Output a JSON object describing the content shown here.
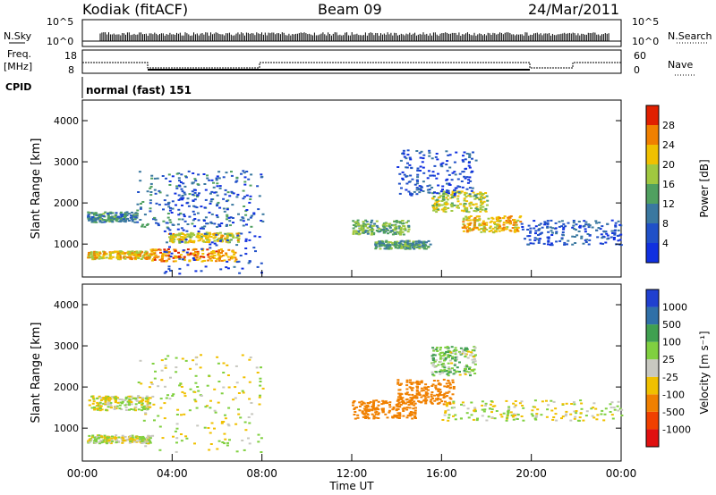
{
  "header": {
    "station": "Kodiak (fitACF)",
    "beam": "Beam 09",
    "date": "24/Mar/2011"
  },
  "sky_panel": {
    "left_label": "N.Sky",
    "right_label": "N.Search",
    "left_ticks": [
      "10^5",
      "10^0"
    ],
    "right_ticks": [
      "10^5",
      "10^0"
    ]
  },
  "freq_panel": {
    "left_label": "Freq.",
    "left_unit": "[MHz]",
    "right_label": "Nave",
    "left_ticks": [
      "18",
      "8"
    ],
    "right_ticks": [
      "60",
      "0"
    ]
  },
  "cpid": {
    "label": "CPID",
    "value": "normal (fast) 151"
  },
  "chart_data": [
    {
      "type": "heatmap",
      "name": "Power",
      "ylabel": "Slant Range [km]",
      "ylim": [
        200,
        4500
      ],
      "yticks": [
        "1000",
        "2000",
        "3000",
        "4000"
      ],
      "colorbar": {
        "label": "Power [dB]",
        "ticks": [
          "4",
          "8",
          "12",
          "16",
          "20",
          "24",
          "28"
        ],
        "colors": [
          "#1030e0",
          "#2050c8",
          "#3a78a0",
          "#50a060",
          "#a0c840",
          "#f0c000",
          "#f08000",
          "#e02000"
        ]
      },
      "blobs": [
        {
          "t": [
            0.2,
            2.4
          ],
          "r": [
            1550,
            1800
          ],
          "v": 14
        },
        {
          "t": [
            0.2,
            3.0
          ],
          "r": [
            650,
            850
          ],
          "v": 24
        },
        {
          "t": [
            2.4,
            7.5
          ],
          "r": [
            1400,
            2800
          ],
          "v": 12
        },
        {
          "t": [
            3.0,
            6.8
          ],
          "r": [
            600,
            900
          ],
          "v": 27
        },
        {
          "t": [
            3.8,
            7.0
          ],
          "r": [
            1050,
            1300
          ],
          "v": 22
        },
        {
          "t": [
            3.5,
            8.0
          ],
          "r": [
            300,
            2800
          ],
          "v": 6
        },
        {
          "t": [
            12.0,
            14.5
          ],
          "r": [
            1250,
            1600
          ],
          "v": 17
        },
        {
          "t": [
            13.0,
            15.5
          ],
          "r": [
            900,
            1100
          ],
          "v": 15
        },
        {
          "t": [
            15.5,
            18.0
          ],
          "r": [
            1800,
            2300
          ],
          "v": 21
        },
        {
          "t": [
            16.8,
            19.5
          ],
          "r": [
            1300,
            1700
          ],
          "v": 25
        },
        {
          "t": [
            14.0,
            17.5
          ],
          "r": [
            2200,
            3300
          ],
          "v": 7
        },
        {
          "t": [
            19.5,
            24.0
          ],
          "r": [
            1000,
            1600
          ],
          "v": 8
        }
      ]
    },
    {
      "type": "heatmap",
      "name": "Velocity",
      "ylabel": "Slant Range [km]",
      "xlabel": "Time UT",
      "ylim": [
        200,
        4500
      ],
      "yticks": [
        "1000",
        "2000",
        "3000",
        "4000"
      ],
      "xticks": [
        "00:00",
        "04:00",
        "08:00",
        "12:00",
        "16:00",
        "20:00",
        "00:00"
      ],
      "xlim": [
        0,
        24
      ],
      "colorbar": {
        "label": "Velocity [m s⁻¹]",
        "ticks": [
          "1000",
          "500",
          "100",
          "25",
          "-25",
          "-100",
          "-500",
          "-1000"
        ],
        "colors": [
          "#2040d0",
          "#3070a8",
          "#40a050",
          "#80d040",
          "#c8c8c0",
          "#f0c000",
          "#f08000",
          "#f04000",
          "#e01010"
        ]
      },
      "blobs": [
        {
          "t": [
            0.2,
            3.0
          ],
          "r": [
            1450,
            1800
          ],
          "v": 0
        },
        {
          "t": [
            0.2,
            3.0
          ],
          "r": [
            650,
            850
          ],
          "v": 0
        },
        {
          "t": [
            2.4,
            8.0
          ],
          "r": [
            400,
            2800
          ],
          "v": 0
        },
        {
          "t": [
            12.0,
            14.8
          ],
          "r": [
            1250,
            1700
          ],
          "v": -300
        },
        {
          "t": [
            14.0,
            16.5
          ],
          "r": [
            1600,
            2200
          ],
          "v": -200
        },
        {
          "t": [
            16.0,
            24.0
          ],
          "r": [
            1200,
            1700
          ],
          "v": 0
        },
        {
          "t": [
            15.5,
            17.5
          ],
          "r": [
            2300,
            3000
          ],
          "v": 60
        }
      ]
    }
  ]
}
